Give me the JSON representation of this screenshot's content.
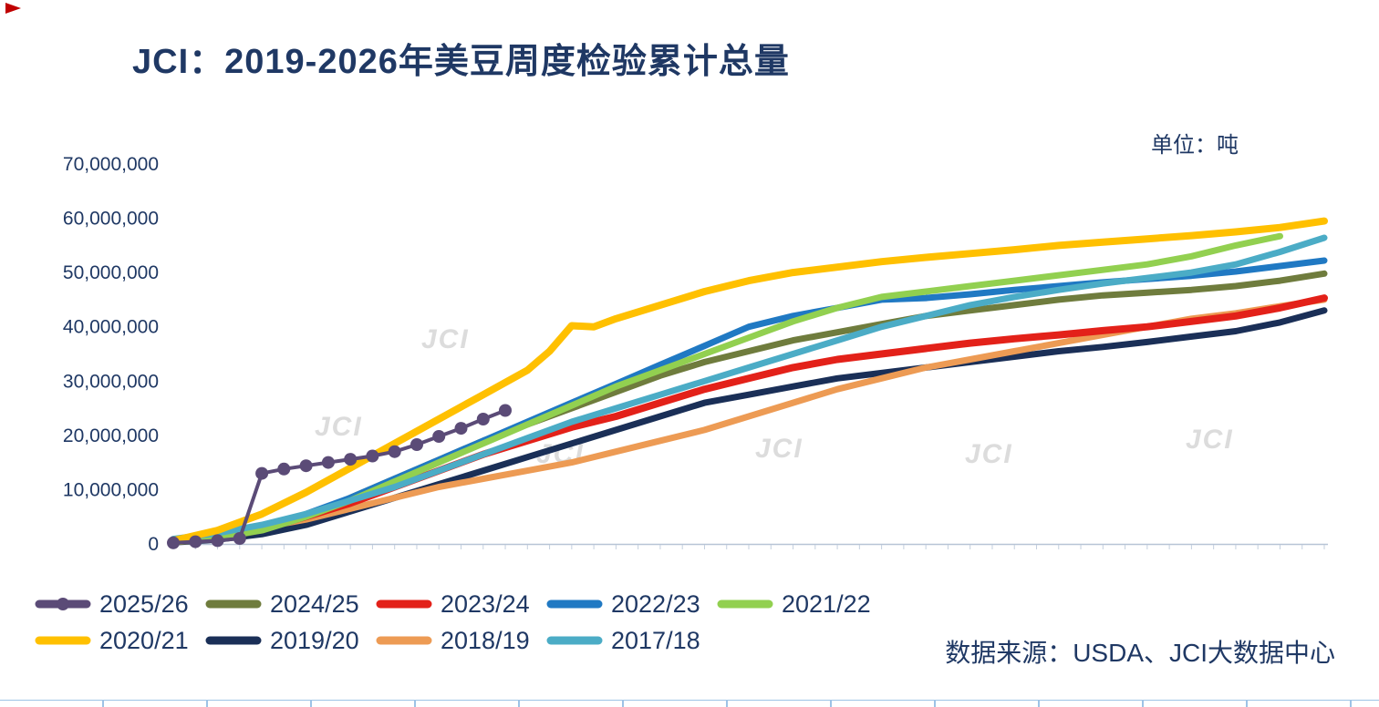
{
  "chart_data": {
    "type": "line",
    "title": "JCI：2019-2026年美豆周度检验累计总量",
    "unit_label": "单位：吨",
    "source": "数据来源：USDA、JCI大数据中心",
    "watermark_text": "JCI",
    "x_axis": {
      "label": "",
      "range_weeks": [
        0,
        52
      ],
      "tick_labels_visible": false
    },
    "y_axis": {
      "label": "",
      "range": [
        0,
        70000000
      ],
      "ticks": [
        0,
        10000000,
        20000000,
        30000000,
        40000000,
        50000000,
        60000000,
        70000000
      ]
    },
    "values_unit": "million tons (cumulative weekly inspections)",
    "grid": false,
    "legend_position": "bottom",
    "draw_order": [
      6,
      7,
      2,
      1,
      3,
      4,
      8,
      5,
      0
    ],
    "series": [
      {
        "name": "2025/26",
        "color": "#5B4B77",
        "marker": true,
        "line_width": 4,
        "points": [
          [
            0,
            0.2
          ],
          [
            1,
            0.4
          ],
          [
            2,
            0.6
          ],
          [
            3,
            1.0
          ],
          [
            4,
            13.0
          ],
          [
            5,
            13.8
          ],
          [
            6,
            14.4
          ],
          [
            7,
            15.0
          ],
          [
            8,
            15.6
          ],
          [
            9,
            16.2
          ],
          [
            10,
            17.0
          ],
          [
            11,
            18.3
          ],
          [
            12,
            19.8
          ],
          [
            13,
            21.3
          ],
          [
            14,
            23.0
          ],
          [
            15,
            24.6
          ]
        ]
      },
      {
        "name": "2024/25",
        "color": "#6F7C3D",
        "marker": false,
        "line_width": 7,
        "points": [
          [
            0,
            0.3
          ],
          [
            2,
            1.0
          ],
          [
            4,
            2.5
          ],
          [
            6,
            5.0
          ],
          [
            8,
            8.5
          ],
          [
            10,
            12.0
          ],
          [
            12,
            15.5
          ],
          [
            14,
            19.0
          ],
          [
            16,
            22.0
          ],
          [
            18,
            25.0
          ],
          [
            20,
            28.0
          ],
          [
            22,
            31.0
          ],
          [
            24,
            33.5
          ],
          [
            26,
            35.5
          ],
          [
            28,
            37.5
          ],
          [
            30,
            39.0
          ],
          [
            32,
            40.5
          ],
          [
            34,
            42.0
          ],
          [
            36,
            43.0
          ],
          [
            38,
            44.0
          ],
          [
            40,
            45.0
          ],
          [
            42,
            45.8
          ],
          [
            44,
            46.3
          ],
          [
            46,
            46.8
          ],
          [
            48,
            47.5
          ],
          [
            50,
            48.5
          ],
          [
            52,
            49.8
          ]
        ]
      },
      {
        "name": "2023/24",
        "color": "#E32119",
        "marker": false,
        "line_width": 8,
        "points": [
          [
            0,
            0.4
          ],
          [
            2,
            1.2
          ],
          [
            4,
            2.8
          ],
          [
            6,
            5.0
          ],
          [
            8,
            7.5
          ],
          [
            10,
            10.5
          ],
          [
            12,
            13.5
          ],
          [
            14,
            16.5
          ],
          [
            16,
            19.0
          ],
          [
            18,
            21.5
          ],
          [
            20,
            23.5
          ],
          [
            22,
            26.0
          ],
          [
            24,
            28.5
          ],
          [
            26,
            30.5
          ],
          [
            28,
            32.5
          ],
          [
            30,
            34.0
          ],
          [
            32,
            35.0
          ],
          [
            34,
            36.0
          ],
          [
            36,
            37.0
          ],
          [
            38,
            37.8
          ],
          [
            40,
            38.5
          ],
          [
            42,
            39.3
          ],
          [
            44,
            40.0
          ],
          [
            46,
            41.0
          ],
          [
            48,
            42.0
          ],
          [
            50,
            43.5
          ],
          [
            52,
            45.3
          ]
        ]
      },
      {
        "name": "2022/23",
        "color": "#2079C3",
        "marker": false,
        "line_width": 7,
        "points": [
          [
            0,
            0.5
          ],
          [
            2,
            1.5
          ],
          [
            4,
            3.0
          ],
          [
            6,
            5.5
          ],
          [
            8,
            8.5
          ],
          [
            10,
            12.0
          ],
          [
            12,
            15.5
          ],
          [
            14,
            19.0
          ],
          [
            16,
            22.5
          ],
          [
            18,
            26.0
          ],
          [
            20,
            29.5
          ],
          [
            22,
            33.0
          ],
          [
            24,
            36.5
          ],
          [
            26,
            40.0
          ],
          [
            28,
            42.0
          ],
          [
            30,
            43.5
          ],
          [
            32,
            45.0
          ],
          [
            34,
            45.3
          ],
          [
            36,
            46.0
          ],
          [
            38,
            46.8
          ],
          [
            40,
            47.5
          ],
          [
            42,
            48.2
          ],
          [
            44,
            48.8
          ],
          [
            46,
            49.4
          ],
          [
            48,
            50.2
          ],
          [
            50,
            51.2
          ],
          [
            52,
            52.2
          ]
        ]
      },
      {
        "name": "2021/22",
        "color": "#92D050",
        "marker": false,
        "line_width": 7,
        "points": [
          [
            0,
            0.4
          ],
          [
            2,
            1.2
          ],
          [
            4,
            2.5
          ],
          [
            6,
            5.0
          ],
          [
            8,
            8.0
          ],
          [
            10,
            11.5
          ],
          [
            12,
            15.0
          ],
          [
            14,
            18.5
          ],
          [
            16,
            22.0
          ],
          [
            18,
            25.5
          ],
          [
            20,
            29.0
          ],
          [
            22,
            32.0
          ],
          [
            24,
            35.0
          ],
          [
            26,
            38.0
          ],
          [
            28,
            41.0
          ],
          [
            30,
            43.5
          ],
          [
            32,
            45.5
          ],
          [
            34,
            46.5
          ],
          [
            36,
            47.5
          ],
          [
            38,
            48.5
          ],
          [
            40,
            49.5
          ],
          [
            42,
            50.5
          ],
          [
            44,
            51.5
          ],
          [
            46,
            53.0
          ],
          [
            48,
            55.0
          ],
          [
            50,
            56.7
          ]
        ]
      },
      {
        "name": "2020/21",
        "color": "#FFC000",
        "marker": false,
        "line_width": 8,
        "points": [
          [
            0,
            0.6
          ],
          [
            2,
            2.5
          ],
          [
            4,
            5.5
          ],
          [
            6,
            9.5
          ],
          [
            8,
            14.0
          ],
          [
            10,
            18.5
          ],
          [
            12,
            23.0
          ],
          [
            14,
            27.5
          ],
          [
            16,
            32.0
          ],
          [
            17,
            35.5
          ],
          [
            18,
            40.2
          ],
          [
            19,
            40.0
          ],
          [
            20,
            41.5
          ],
          [
            22,
            44.0
          ],
          [
            24,
            46.5
          ],
          [
            26,
            48.5
          ],
          [
            28,
            50.0
          ],
          [
            30,
            51.0
          ],
          [
            32,
            52.0
          ],
          [
            34,
            52.8
          ],
          [
            36,
            53.5
          ],
          [
            38,
            54.2
          ],
          [
            40,
            55.0
          ],
          [
            42,
            55.6
          ],
          [
            44,
            56.2
          ],
          [
            46,
            56.8
          ],
          [
            48,
            57.5
          ],
          [
            50,
            58.3
          ],
          [
            52,
            59.5
          ]
        ]
      },
      {
        "name": "2019/20",
        "color": "#1A2F57",
        "marker": false,
        "line_width": 7,
        "points": [
          [
            0,
            0.3
          ],
          [
            2,
            0.8
          ],
          [
            4,
            1.8
          ],
          [
            6,
            3.5
          ],
          [
            8,
            6.0
          ],
          [
            10,
            8.5
          ],
          [
            12,
            11.0
          ],
          [
            14,
            13.5
          ],
          [
            16,
            16.0
          ],
          [
            18,
            18.5
          ],
          [
            20,
            21.0
          ],
          [
            22,
            23.5
          ],
          [
            24,
            26.0
          ],
          [
            26,
            27.5
          ],
          [
            28,
            29.0
          ],
          [
            30,
            30.5
          ],
          [
            32,
            31.5
          ],
          [
            34,
            32.5
          ],
          [
            36,
            33.5
          ],
          [
            38,
            34.5
          ],
          [
            40,
            35.5
          ],
          [
            42,
            36.3
          ],
          [
            44,
            37.2
          ],
          [
            46,
            38.2
          ],
          [
            48,
            39.2
          ],
          [
            50,
            40.8
          ],
          [
            52,
            43.0
          ]
        ]
      },
      {
        "name": "2018/19",
        "color": "#ED9B54",
        "marker": false,
        "line_width": 7,
        "points": [
          [
            0,
            0.5
          ],
          [
            2,
            1.5
          ],
          [
            4,
            3.0
          ],
          [
            6,
            4.5
          ],
          [
            8,
            6.5
          ],
          [
            10,
            8.5
          ],
          [
            12,
            10.5
          ],
          [
            14,
            12.0
          ],
          [
            16,
            13.5
          ],
          [
            18,
            15.0
          ],
          [
            20,
            17.0
          ],
          [
            22,
            19.0
          ],
          [
            24,
            21.0
          ],
          [
            26,
            23.5
          ],
          [
            28,
            26.0
          ],
          [
            30,
            28.5
          ],
          [
            32,
            30.5
          ],
          [
            34,
            32.5
          ],
          [
            36,
            34.0
          ],
          [
            38,
            35.5
          ],
          [
            40,
            37.0
          ],
          [
            42,
            38.5
          ],
          [
            44,
            40.0
          ],
          [
            46,
            41.5
          ],
          [
            48,
            42.5
          ],
          [
            50,
            43.8
          ],
          [
            52,
            45.0
          ]
        ]
      },
      {
        "name": "2017/18",
        "color": "#4BACC6",
        "marker": false,
        "line_width": 7,
        "points": [
          [
            0,
            0.9
          ],
          [
            2,
            2.0
          ],
          [
            4,
            3.5
          ],
          [
            6,
            5.5
          ],
          [
            8,
            8.0
          ],
          [
            10,
            10.5
          ],
          [
            12,
            13.5
          ],
          [
            14,
            16.5
          ],
          [
            16,
            19.5
          ],
          [
            18,
            22.5
          ],
          [
            20,
            25.0
          ],
          [
            22,
            27.5
          ],
          [
            24,
            30.0
          ],
          [
            26,
            32.5
          ],
          [
            28,
            35.0
          ],
          [
            30,
            37.5
          ],
          [
            32,
            40.0
          ],
          [
            34,
            42.0
          ],
          [
            36,
            44.0
          ],
          [
            38,
            45.5
          ],
          [
            40,
            46.8
          ],
          [
            42,
            48.0
          ],
          [
            44,
            49.0
          ],
          [
            46,
            50.0
          ],
          [
            48,
            51.5
          ],
          [
            50,
            53.8
          ],
          [
            52,
            56.4
          ]
        ]
      }
    ]
  }
}
